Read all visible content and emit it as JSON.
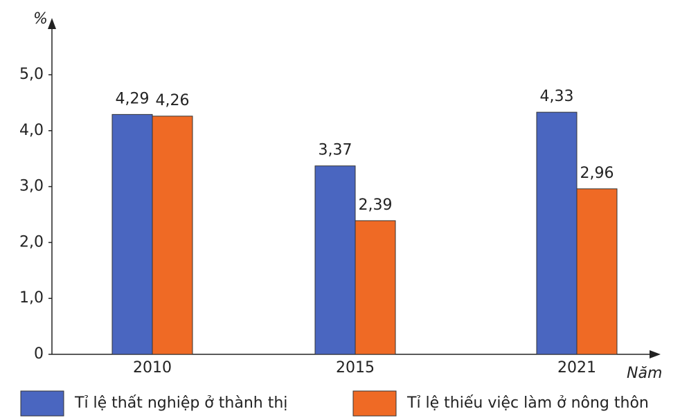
{
  "chart_data": {
    "type": "bar",
    "y_label": "%",
    "x_label": "Năm",
    "categories": [
      "2010",
      "2015",
      "2021"
    ],
    "series": [
      {
        "name": "Tỉ lệ thất nghiệp ở thành thị",
        "color": "#4a66c0",
        "values": [
          4.29,
          3.37,
          4.33
        ],
        "value_labels": [
          "4,29",
          "3,37",
          "4,33"
        ]
      },
      {
        "name": "Tỉ lệ thiếu việc làm ở nông thôn",
        "color": "#ef6a25",
        "values": [
          4.26,
          2.39,
          2.96
        ],
        "value_labels": [
          "4,26",
          "2,39",
          "2,96"
        ]
      }
    ],
    "ylim": [
      0,
      5
    ],
    "yticks": [
      0,
      {
        "value": 1,
        "label": "1,0"
      },
      {
        "value": 2,
        "label": "2,0"
      },
      {
        "value": 3,
        "label": "3,0"
      },
      {
        "value": 4,
        "label": "4,0"
      },
      {
        "value": 5,
        "label": "5,0"
      }
    ]
  }
}
